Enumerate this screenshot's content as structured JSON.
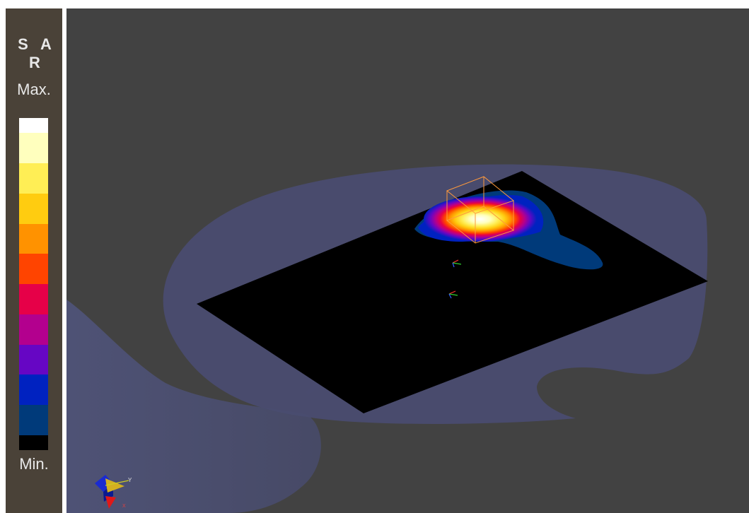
{
  "legend": {
    "title": "S A R",
    "max_label": "Max.",
    "min_label": "Min.",
    "colors": [
      "#ffffff",
      "#ffffbe",
      "#ffee55",
      "#ffcc10",
      "#ff9200",
      "#ff4400",
      "#e60048",
      "#b3008e",
      "#6606c4",
      "#0022c0",
      "#003a7a",
      "#000000"
    ]
  },
  "viewport": {
    "background": "#424242",
    "body_tissue_color": "#4a4c70",
    "board_color": "#000000",
    "probe_box_color": "#ff9a3c"
  },
  "axes_widget": {
    "y_label": "Y",
    "x_label": "X",
    "z_label": "Z"
  }
}
